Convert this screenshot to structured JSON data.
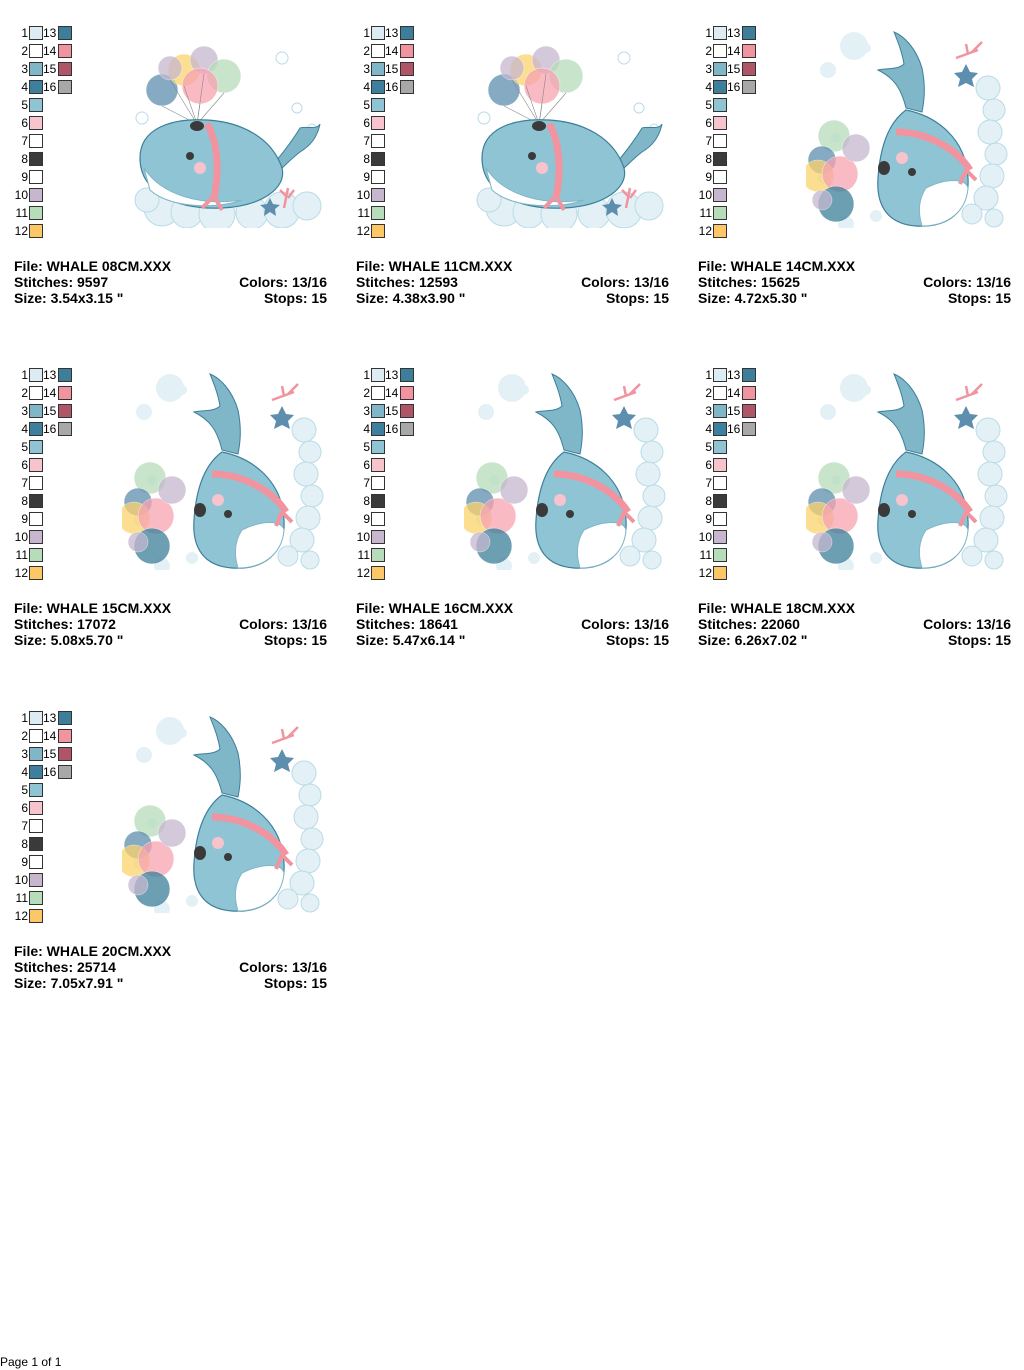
{
  "palette": {
    "left_column": [
      {
        "num": "1",
        "color": "#dcecf2"
      },
      {
        "num": "2",
        "color": "#ffffff"
      },
      {
        "num": "3",
        "color": "#7fb6c8"
      },
      {
        "num": "4",
        "color": "#3f7f9e"
      },
      {
        "num": "5",
        "color": "#8fc4d4"
      },
      {
        "num": "6",
        "color": "#f7c3cd"
      },
      {
        "num": "7",
        "color": "#ffffff"
      },
      {
        "num": "8",
        "color": "#3a3a3a"
      },
      {
        "num": "9",
        "color": "#ffffff"
      },
      {
        "num": "10",
        "color": "#c6b7cf"
      },
      {
        "num": "11",
        "color": "#b6dcb9"
      },
      {
        "num": "12",
        "color": "#fcc766"
      }
    ],
    "right_column": [
      {
        "num": "13",
        "color": "#3d7f9a"
      },
      {
        "num": "14",
        "color": "#f1949f"
      },
      {
        "num": "15",
        "color": "#b05468"
      },
      {
        "num": "16",
        "color": "#a8a8a8"
      }
    ]
  },
  "labels": {
    "file": "File:",
    "stitches": "Stitches:",
    "size": "Size:",
    "colors": "Colors:",
    "stops": "Stops:"
  },
  "designs": [
    {
      "file": "WHALE 08CM.XXX",
      "stitches": "9597",
      "size": "3.54x3.15 \"",
      "colors": "13/16",
      "stops": "15",
      "pose": "horizontal"
    },
    {
      "file": "WHALE 11CM.XXX",
      "stitches": "12593",
      "size": "4.38x3.90 \"",
      "colors": "13/16",
      "stops": "15",
      "pose": "horizontal"
    },
    {
      "file": "WHALE 14CM.XXX",
      "stitches": "15625",
      "size": "4.72x5.30 \"",
      "colors": "13/16",
      "stops": "15",
      "pose": "vertical"
    },
    {
      "file": "WHALE 15CM.XXX",
      "stitches": "17072",
      "size": "5.08x5.70 \"",
      "colors": "13/16",
      "stops": "15",
      "pose": "vertical"
    },
    {
      "file": "WHALE 16CM.XXX",
      "stitches": "18641",
      "size": "5.47x6.14 \"",
      "colors": "13/16",
      "stops": "15",
      "pose": "vertical"
    },
    {
      "file": "WHALE 18CM.XXX",
      "stitches": "22060",
      "size": "6.26x7.02 \"",
      "colors": "13/16",
      "stops": "15",
      "pose": "vertical"
    },
    {
      "file": "WHALE 20CM.XXX",
      "stitches": "25714",
      "size": "7.05x7.91 \"",
      "colors": "13/16",
      "stops": "15",
      "pose": "vertical"
    }
  ],
  "footer": {
    "page": "Page 1 of 1"
  }
}
